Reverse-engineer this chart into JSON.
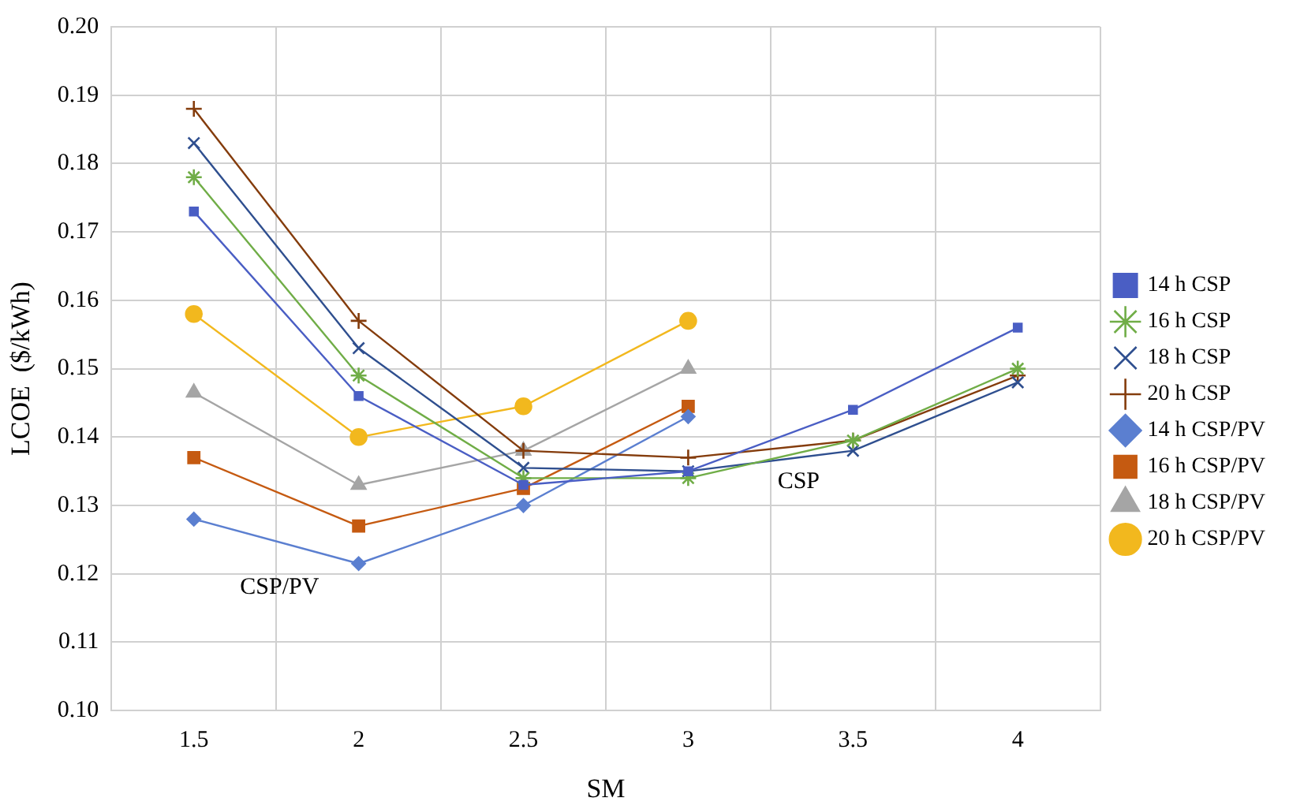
{
  "chart_data": {
    "type": "line",
    "xlabel": "SM",
    "ylabel": "LCOE  ($/kWh)",
    "categories": [
      "1.5",
      "2",
      "2.5",
      "3",
      "3.5",
      "4"
    ],
    "ylim": [
      0.1,
      0.2
    ],
    "yticks": [
      {
        "value": 0.1,
        "label": "0.10"
      },
      0.11,
      0.12,
      0.13,
      0.14,
      0.15,
      0.16,
      0.17,
      0.18,
      0.19,
      {
        "value": 0.2,
        "label": "0.20"
      }
    ],
    "grid": true,
    "legend": "right",
    "line_style": "solid",
    "series": [
      {
        "name": "14 h CSP",
        "color": "#4a5ec4",
        "marker": "square",
        "values": [
          0.173,
          0.146,
          0.133,
          0.135,
          0.144,
          0.156
        ]
      },
      {
        "name": "16 h CSP",
        "color": "#70ad47",
        "marker": "cross",
        "values": [
          0.178,
          0.149,
          0.134,
          0.134,
          0.1395,
          0.15
        ]
      },
      {
        "name": "18 h CSP",
        "color": "#2f4f8f",
        "marker": "cross",
        "values": [
          0.183,
          0.153,
          0.1355,
          0.135,
          0.138,
          0.148
        ]
      },
      {
        "name": "20 h CSP",
        "color": "#843c0c",
        "marker": "cross",
        "values": [
          0.188,
          0.157,
          0.138,
          0.137,
          0.1395,
          0.149
        ]
      },
      {
        "name": "14 h CSP/PV",
        "color": "#5b7fd0",
        "marker": "diamond",
        "values": [
          0.128,
          0.1215,
          0.13,
          0.143,
          null,
          null
        ]
      },
      {
        "name": "16 h CSP/PV",
        "color": "#c55a11",
        "marker": "square",
        "values": [
          0.137,
          0.127,
          0.1325,
          0.1445,
          null,
          null
        ]
      },
      {
        "name": "18 h CSP/PV",
        "color": "#a5a5a5",
        "marker": "triangle",
        "values": [
          0.1465,
          0.133,
          0.138,
          0.15,
          null,
          null
        ]
      },
      {
        "name": "20 h CSP/PV",
        "color": "#f2b81e",
        "marker": "circle",
        "values": [
          0.158,
          0.14,
          0.1445,
          0.157,
          null,
          null
        ]
      }
    ],
    "annotations": [
      "CSP/PV",
      "CSP"
    ]
  }
}
